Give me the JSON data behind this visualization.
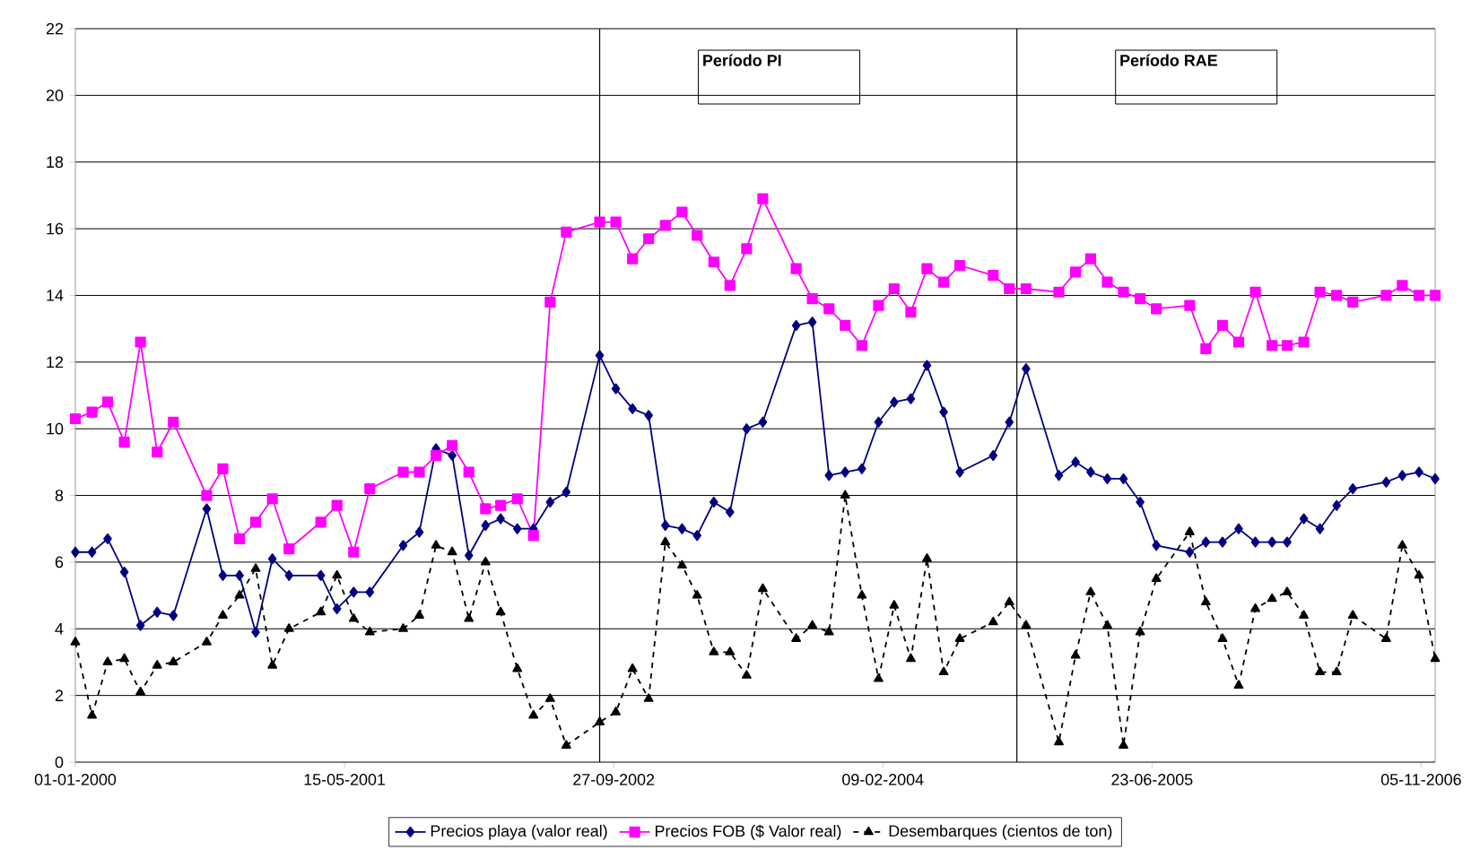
{
  "chart_data": {
    "type": "line",
    "x": [
      "2000-01",
      "2000-02",
      "2000-03",
      "2000-04",
      "2000-05",
      "2000-06",
      "2000-07",
      "2000-09",
      "2000-10",
      "2000-11",
      "2000-12",
      "2001-01",
      "2001-02",
      "2001-04",
      "2001-05",
      "2001-06",
      "2001-07",
      "2001-09",
      "2001-10",
      "2001-11",
      "2001-12",
      "2002-01",
      "2002-02",
      "2002-03",
      "2002-04",
      "2002-05",
      "2002-06",
      "2002-07",
      "2002-09",
      "2002-10",
      "2002-11",
      "2002-12",
      "2003-01",
      "2003-02",
      "2003-03",
      "2003-04",
      "2003-05",
      "2003-06",
      "2003-07",
      "2003-09",
      "2003-10",
      "2003-11",
      "2003-12",
      "2004-01",
      "2004-02",
      "2004-03",
      "2004-04",
      "2004-05",
      "2004-06",
      "2004-07",
      "2004-09",
      "2004-10",
      "2004-11",
      "2005-01",
      "2005-02",
      "2005-03",
      "2005-04",
      "2005-05",
      "2005-06",
      "2005-07",
      "2005-09",
      "2005-10",
      "2005-11",
      "2005-12",
      "2006-01",
      "2006-02",
      "2006-03",
      "2006-04",
      "2006-05",
      "2006-06",
      "2006-07",
      "2006-09",
      "2006-10",
      "2006-11",
      "2006-12"
    ],
    "series": [
      {
        "name": "Precios playa (valor real)",
        "color": "#000080",
        "marker": "diamond",
        "line_style": "solid",
        "values": [
          6.3,
          6.3,
          6.7,
          5.7,
          4.1,
          4.5,
          4.4,
          7.6,
          5.6,
          5.6,
          3.9,
          6.1,
          5.6,
          5.6,
          4.6,
          5.1,
          5.1,
          6.5,
          6.9,
          9.4,
          9.2,
          6.2,
          7.1,
          7.3,
          7.0,
          7.0,
          7.8,
          8.1,
          12.2,
          11.2,
          10.6,
          10.4,
          7.1,
          7.0,
          6.8,
          7.8,
          7.5,
          10.0,
          10.2,
          13.1,
          13.2,
          8.6,
          8.7,
          8.8,
          10.2,
          10.8,
          10.9,
          11.9,
          10.5,
          8.7,
          9.2,
          10.2,
          11.8,
          8.6,
          9.0,
          8.7,
          8.5,
          8.5,
          7.8,
          6.5,
          6.3,
          6.6,
          6.6,
          7.0,
          6.6,
          6.6,
          6.6,
          7.3,
          7.0,
          7.7,
          8.2,
          8.4,
          8.6,
          8.7,
          8.5
        ]
      },
      {
        "name": "Precios FOB ($ Valor real)",
        "color": "#ff00ff",
        "marker": "square",
        "line_style": "solid",
        "values": [
          10.3,
          10.5,
          10.8,
          9.6,
          12.6,
          9.3,
          10.2,
          8.0,
          8.8,
          6.7,
          7.2,
          7.9,
          6.4,
          7.2,
          7.7,
          6.3,
          8.2,
          8.7,
          8.7,
          9.2,
          9.5,
          8.7,
          7.6,
          7.7,
          7.9,
          6.8,
          13.8,
          15.9,
          16.2,
          16.2,
          15.1,
          15.7,
          16.1,
          16.5,
          15.8,
          15.0,
          14.3,
          15.4,
          16.9,
          14.8,
          13.9,
          13.6,
          13.1,
          12.5,
          13.7,
          14.2,
          13.5,
          14.8,
          14.4,
          14.9,
          14.6,
          14.2,
          14.2,
          14.1,
          14.7,
          15.1,
          14.4,
          14.1,
          13.9,
          13.6,
          13.7,
          12.4,
          13.1,
          12.6,
          14.1,
          12.5,
          12.5,
          12.6,
          14.1,
          14.0,
          13.8,
          14.0,
          14.3,
          14.0,
          14.0
        ]
      },
      {
        "name": "Desembarques (cientos de ton)",
        "color": "#000000",
        "marker": "triangle",
        "line_style": "dashed",
        "values": [
          3.6,
          1.4,
          3.0,
          3.1,
          2.1,
          2.9,
          3.0,
          3.6,
          4.4,
          5.0,
          5.8,
          2.9,
          4.0,
          4.5,
          5.6,
          4.3,
          3.9,
          4.0,
          4.4,
          6.5,
          6.3,
          4.3,
          6.0,
          4.5,
          2.8,
          1.4,
          1.9,
          0.5,
          1.2,
          1.5,
          2.8,
          1.9,
          6.6,
          5.9,
          5.0,
          3.3,
          3.3,
          2.6,
          5.2,
          3.7,
          4.1,
          3.9,
          8.0,
          5.0,
          2.5,
          4.7,
          3.1,
          6.1,
          2.7,
          3.7,
          4.2,
          4.8,
          4.1,
          0.6,
          3.2,
          5.1,
          4.1,
          0.5,
          3.9,
          5.5,
          6.9,
          4.8,
          3.7,
          2.3,
          4.6,
          4.9,
          5.1,
          4.4,
          2.7,
          2.7,
          4.4,
          3.7,
          6.5,
          5.6,
          3.1
        ]
      }
    ],
    "xlim": [
      "2000-01-01",
      "2006-12-01"
    ],
    "xticks": [
      {
        "value": "2000-01-01",
        "label": "01-01-2000"
      },
      {
        "value": "2001-05-15",
        "label": "15-05-2001"
      },
      {
        "value": "2002-09-27",
        "label": "27-09-2002"
      },
      {
        "value": "2004-02-09",
        "label": "09-02-2004"
      },
      {
        "value": "2005-06-23",
        "label": "23-06-2005"
      },
      {
        "value": "2006-11-05",
        "label": "05-11-2006"
      }
    ],
    "ylim": [
      0,
      22
    ],
    "yticks": [
      0,
      2,
      4,
      6,
      8,
      10,
      12,
      14,
      16,
      18,
      20,
      22
    ],
    "ref_lines": [
      {
        "axis": "x",
        "value": "2002-09-01",
        "color": "#000000"
      },
      {
        "axis": "x",
        "value": "2004-10-15",
        "color": "#000000"
      }
    ],
    "annotations": [
      "Período PI",
      "Período RAE"
    ],
    "grid": "y",
    "legend": "bottom"
  }
}
